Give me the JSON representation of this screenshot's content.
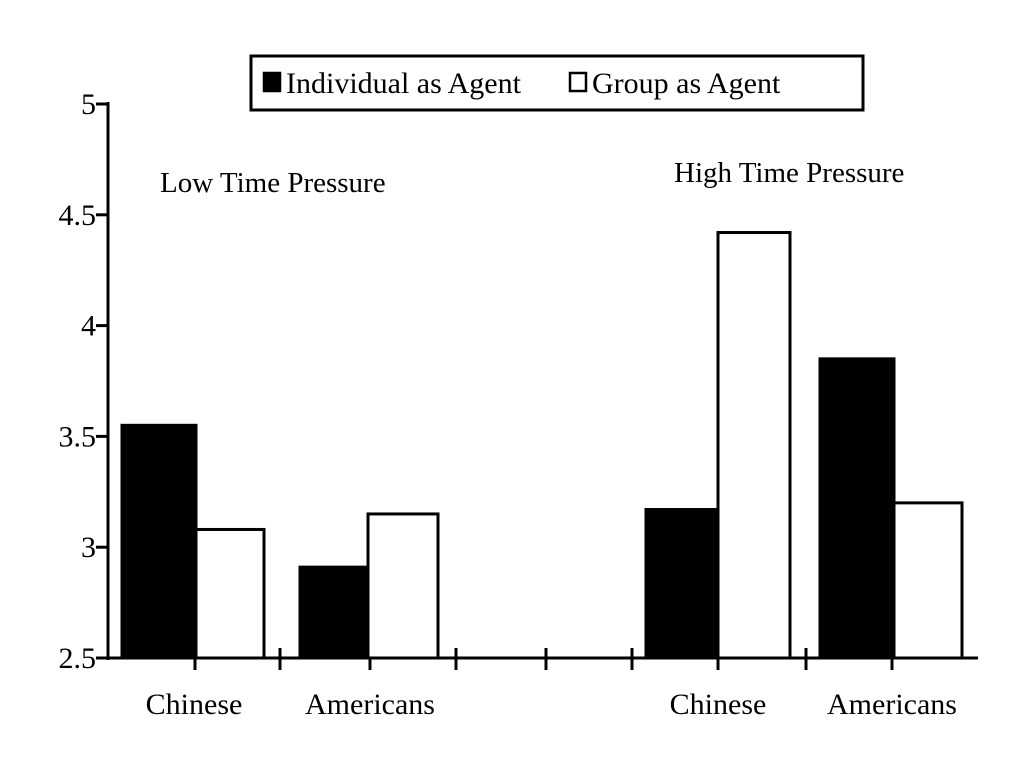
{
  "chart_data": {
    "type": "bar",
    "title": "",
    "xlabel": "",
    "ylabel": "",
    "ylim": [
      2.5,
      5
    ],
    "yticks": [
      "2.5",
      "3",
      "3.5",
      "4",
      "4.5",
      "5"
    ],
    "grid": false,
    "legend_placement": "top-center",
    "panels": [
      {
        "label": "Low Time Pressure",
        "categories": [
          "Chinese",
          "Americans"
        ]
      },
      {
        "label": "High Time Pressure",
        "categories": [
          "Chinese",
          "Americans"
        ]
      }
    ],
    "series": [
      {
        "name": "Individual as Agent",
        "fill": "#000000",
        "values": [
          3.55,
          2.91,
          3.17,
          3.85
        ]
      },
      {
        "name": "Group as Agent",
        "fill": "#ffffff",
        "values": [
          3.08,
          3.15,
          4.42,
          3.2
        ]
      }
    ]
  }
}
